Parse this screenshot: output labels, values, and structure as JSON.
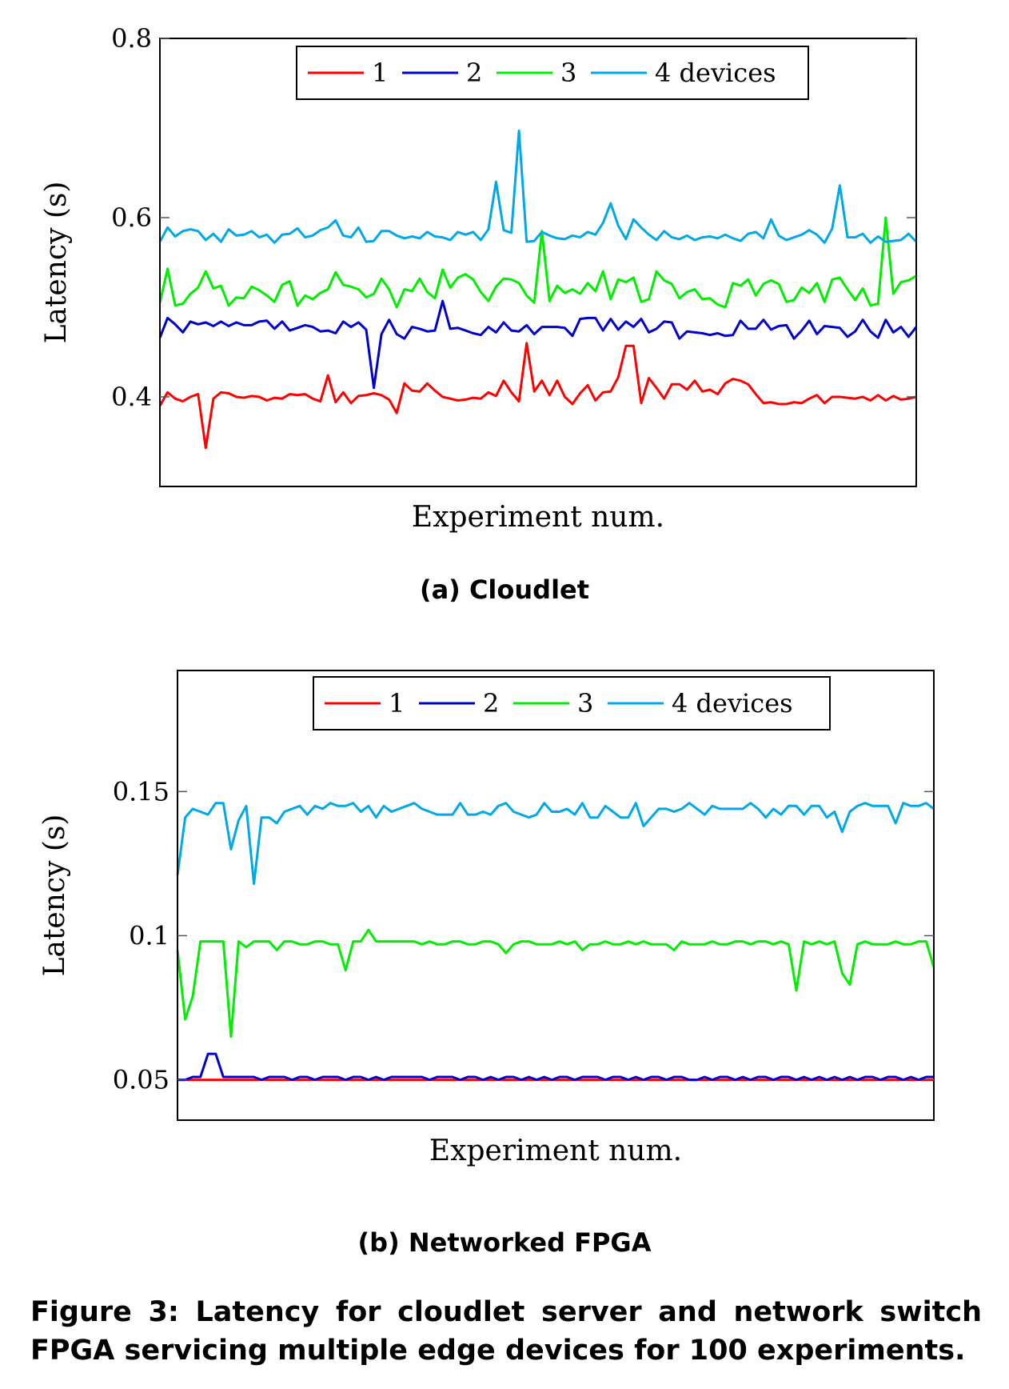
{
  "figure_caption": "Figure 3: Latency for cloudlet server and network switch FPGA servicing multiple edge devices for 100 experiments.",
  "colors": {
    "series_1": "#ff0000",
    "series_2": "#0000cc",
    "series_3": "#00ee00",
    "series_4": "#00a8e8"
  },
  "chart_data": [
    {
      "type": "line",
      "subcaption": "(a) Cloudlet",
      "xlabel": "Experiment num.",
      "ylabel": "Latency (s)",
      "ylim": [
        0.3,
        0.8
      ],
      "yticks": [
        0.4,
        0.6,
        0.8
      ],
      "ytick_labels": [
        "0.4",
        "0.6",
        "0.8"
      ],
      "x_tick_labels_shown": false,
      "grid": false,
      "legend_placement": "top-center",
      "x": [
        1,
        2,
        3,
        4,
        5,
        6,
        7,
        8,
        9,
        10,
        11,
        12,
        13,
        14,
        15,
        16,
        17,
        18,
        19,
        20,
        21,
        22,
        23,
        24,
        25,
        26,
        27,
        28,
        29,
        30,
        31,
        32,
        33,
        34,
        35,
        36,
        37,
        38,
        39,
        40,
        41,
        42,
        43,
        44,
        45,
        46,
        47,
        48,
        49,
        50,
        51,
        52,
        53,
        54,
        55,
        56,
        57,
        58,
        59,
        60,
        61,
        62,
        63,
        64,
        65,
        66,
        67,
        68,
        69,
        70,
        71,
        72,
        73,
        74,
        75,
        76,
        77,
        78,
        79,
        80,
        81,
        82,
        83,
        84,
        85,
        86,
        87,
        88,
        89,
        90,
        91,
        92,
        93,
        94,
        95,
        96,
        97,
        98,
        99,
        100
      ],
      "series": [
        {
          "name": "1",
          "values": [
            0.39,
            0.405,
            0.398,
            0.395,
            0.4,
            0.403,
            0.343,
            0.398,
            0.405,
            0.404,
            0.4,
            0.399,
            0.401,
            0.4,
            0.396,
            0.399,
            0.398,
            0.403,
            0.402,
            0.403,
            0.398,
            0.395,
            0.424,
            0.394,
            0.405,
            0.393,
            0.401,
            0.402,
            0.404,
            0.402,
            0.397,
            0.382,
            0.415,
            0.407,
            0.406,
            0.415,
            0.407,
            0.4,
            0.398,
            0.396,
            0.397,
            0.399,
            0.398,
            0.405,
            0.401,
            0.418,
            0.405,
            0.395,
            0.46,
            0.406,
            0.418,
            0.402,
            0.418,
            0.4,
            0.392,
            0.404,
            0.413,
            0.396,
            0.405,
            0.406,
            0.422,
            0.457,
            0.457,
            0.393,
            0.421,
            0.41,
            0.398,
            0.414,
            0.414,
            0.408,
            0.418,
            0.406,
            0.408,
            0.403,
            0.415,
            0.42,
            0.418,
            0.414,
            0.403,
            0.393,
            0.394,
            0.392,
            0.392,
            0.394,
            0.393,
            0.398,
            0.402,
            0.393,
            0.4,
            0.4,
            0.399,
            0.398,
            0.4,
            0.396,
            0.402,
            0.396,
            0.401,
            0.397,
            0.398,
            0.4
          ]
        },
        {
          "name": "2",
          "values": [
            0.466,
            0.488,
            0.481,
            0.472,
            0.484,
            0.481,
            0.483,
            0.479,
            0.484,
            0.479,
            0.483,
            0.48,
            0.48,
            0.484,
            0.485,
            0.476,
            0.484,
            0.474,
            0.477,
            0.48,
            0.478,
            0.473,
            0.474,
            0.471,
            0.484,
            0.478,
            0.483,
            0.475,
            0.41,
            0.47,
            0.486,
            0.47,
            0.465,
            0.478,
            0.476,
            0.473,
            0.474,
            0.507,
            0.476,
            0.477,
            0.474,
            0.471,
            0.469,
            0.478,
            0.472,
            0.483,
            0.474,
            0.473,
            0.48,
            0.47,
            0.478,
            0.478,
            0.478,
            0.477,
            0.468,
            0.487,
            0.488,
            0.488,
            0.474,
            0.487,
            0.475,
            0.484,
            0.478,
            0.487,
            0.472,
            0.476,
            0.484,
            0.483,
            0.465,
            0.473,
            0.472,
            0.471,
            0.469,
            0.471,
            0.468,
            0.469,
            0.485,
            0.476,
            0.476,
            0.486,
            0.475,
            0.479,
            0.48,
            0.465,
            0.474,
            0.485,
            0.47,
            0.479,
            0.478,
            0.477,
            0.467,
            0.473,
            0.486,
            0.473,
            0.466,
            0.486,
            0.472,
            0.478,
            0.467,
            0.478
          ]
        },
        {
          "name": "3",
          "values": [
            0.505,
            0.543,
            0.502,
            0.504,
            0.515,
            0.522,
            0.54,
            0.521,
            0.524,
            0.502,
            0.511,
            0.51,
            0.523,
            0.519,
            0.513,
            0.506,
            0.525,
            0.529,
            0.502,
            0.513,
            0.509,
            0.516,
            0.52,
            0.539,
            0.525,
            0.523,
            0.52,
            0.511,
            0.515,
            0.532,
            0.52,
            0.5,
            0.52,
            0.518,
            0.532,
            0.517,
            0.51,
            0.542,
            0.522,
            0.533,
            0.537,
            0.531,
            0.517,
            0.507,
            0.523,
            0.532,
            0.531,
            0.527,
            0.513,
            0.505,
            0.585,
            0.507,
            0.524,
            0.516,
            0.52,
            0.515,
            0.527,
            0.518,
            0.54,
            0.509,
            0.531,
            0.528,
            0.533,
            0.506,
            0.509,
            0.54,
            0.53,
            0.526,
            0.51,
            0.517,
            0.52,
            0.509,
            0.51,
            0.503,
            0.5,
            0.527,
            0.524,
            0.531,
            0.513,
            0.526,
            0.53,
            0.526,
            0.506,
            0.508,
            0.522,
            0.516,
            0.527,
            0.506,
            0.531,
            0.533,
            0.52,
            0.508,
            0.521,
            0.502,
            0.504,
            0.6,
            0.515,
            0.528,
            0.53,
            0.535
          ]
        },
        {
          "name": "4 devices",
          "values": [
            0.573,
            0.589,
            0.579,
            0.585,
            0.587,
            0.585,
            0.575,
            0.582,
            0.573,
            0.587,
            0.58,
            0.581,
            0.585,
            0.578,
            0.581,
            0.572,
            0.581,
            0.582,
            0.588,
            0.578,
            0.58,
            0.586,
            0.589,
            0.597,
            0.58,
            0.578,
            0.589,
            0.573,
            0.574,
            0.585,
            0.585,
            0.58,
            0.577,
            0.579,
            0.577,
            0.584,
            0.579,
            0.578,
            0.575,
            0.584,
            0.581,
            0.584,
            0.575,
            0.587,
            0.64,
            0.586,
            0.583,
            0.697,
            0.573,
            0.574,
            0.584,
            0.58,
            0.577,
            0.576,
            0.58,
            0.578,
            0.584,
            0.581,
            0.594,
            0.616,
            0.591,
            0.576,
            0.598,
            0.589,
            0.581,
            0.575,
            0.585,
            0.578,
            0.576,
            0.58,
            0.575,
            0.578,
            0.579,
            0.577,
            0.581,
            0.577,
            0.574,
            0.582,
            0.584,
            0.577,
            0.598,
            0.58,
            0.575,
            0.578,
            0.581,
            0.586,
            0.581,
            0.572,
            0.588,
            0.636,
            0.578,
            0.578,
            0.582,
            0.572,
            0.579,
            0.573,
            0.574,
            0.575,
            0.582,
            0.573
          ]
        }
      ]
    },
    {
      "type": "line",
      "subcaption": "(b) Networked FPGA",
      "xlabel": "Experiment num.",
      "ylabel": "Latency (s)",
      "ylim": [
        0.036,
        0.192
      ],
      "yticks": [
        0.05,
        0.1,
        0.15
      ],
      "ytick_labels": [
        "0.05",
        "0.1",
        "0.15"
      ],
      "x_tick_labels_shown": false,
      "grid": false,
      "legend_placement": "top-center",
      "x": [
        1,
        2,
        3,
        4,
        5,
        6,
        7,
        8,
        9,
        10,
        11,
        12,
        13,
        14,
        15,
        16,
        17,
        18,
        19,
        20,
        21,
        22,
        23,
        24,
        25,
        26,
        27,
        28,
        29,
        30,
        31,
        32,
        33,
        34,
        35,
        36,
        37,
        38,
        39,
        40,
        41,
        42,
        43,
        44,
        45,
        46,
        47,
        48,
        49,
        50,
        51,
        52,
        53,
        54,
        55,
        56,
        57,
        58,
        59,
        60,
        61,
        62,
        63,
        64,
        65,
        66,
        67,
        68,
        69,
        70,
        71,
        72,
        73,
        74,
        75,
        76,
        77,
        78,
        79,
        80,
        81,
        82,
        83,
        84,
        85,
        86,
        87,
        88,
        89,
        90,
        91,
        92,
        93,
        94,
        95,
        96,
        97,
        98,
        99,
        100
      ],
      "series": [
        {
          "name": "1",
          "values": [
            0.05,
            0.05,
            0.05,
            0.05,
            0.05,
            0.05,
            0.05,
            0.05,
            0.05,
            0.05,
            0.05,
            0.05,
            0.05,
            0.05,
            0.05,
            0.05,
            0.05,
            0.05,
            0.05,
            0.05,
            0.05,
            0.05,
            0.05,
            0.05,
            0.05,
            0.05,
            0.05,
            0.05,
            0.05,
            0.05,
            0.05,
            0.05,
            0.05,
            0.05,
            0.05,
            0.05,
            0.05,
            0.05,
            0.05,
            0.05,
            0.05,
            0.05,
            0.05,
            0.05,
            0.05,
            0.05,
            0.05,
            0.05,
            0.05,
            0.05,
            0.05,
            0.05,
            0.05,
            0.05,
            0.05,
            0.05,
            0.05,
            0.05,
            0.05,
            0.05,
            0.05,
            0.05,
            0.05,
            0.05,
            0.05,
            0.05,
            0.05,
            0.05,
            0.05,
            0.05,
            0.05,
            0.05,
            0.05,
            0.05,
            0.05,
            0.05,
            0.05,
            0.05,
            0.05,
            0.05,
            0.05,
            0.05,
            0.05,
            0.05,
            0.05,
            0.05,
            0.05,
            0.05,
            0.05,
            0.05,
            0.05,
            0.05,
            0.05,
            0.05,
            0.05,
            0.05,
            0.05,
            0.05,
            0.05,
            0.05
          ]
        },
        {
          "name": "2",
          "values": [
            0.05,
            0.05,
            0.051,
            0.051,
            0.059,
            0.059,
            0.051,
            0.051,
            0.051,
            0.051,
            0.051,
            0.05,
            0.051,
            0.051,
            0.051,
            0.05,
            0.051,
            0.051,
            0.05,
            0.051,
            0.051,
            0.051,
            0.05,
            0.051,
            0.051,
            0.05,
            0.051,
            0.05,
            0.051,
            0.051,
            0.051,
            0.051,
            0.051,
            0.05,
            0.051,
            0.051,
            0.051,
            0.05,
            0.051,
            0.051,
            0.05,
            0.051,
            0.05,
            0.051,
            0.051,
            0.05,
            0.051,
            0.05,
            0.051,
            0.05,
            0.051,
            0.051,
            0.05,
            0.051,
            0.051,
            0.051,
            0.05,
            0.051,
            0.051,
            0.05,
            0.051,
            0.05,
            0.051,
            0.051,
            0.05,
            0.051,
            0.051,
            0.05,
            0.05,
            0.051,
            0.05,
            0.051,
            0.051,
            0.05,
            0.051,
            0.05,
            0.051,
            0.051,
            0.05,
            0.051,
            0.051,
            0.05,
            0.051,
            0.05,
            0.051,
            0.05,
            0.051,
            0.05,
            0.051,
            0.05,
            0.051,
            0.051,
            0.05,
            0.051,
            0.051,
            0.05,
            0.051,
            0.05,
            0.051,
            0.051
          ]
        },
        {
          "name": "3",
          "values": [
            0.095,
            0.071,
            0.079,
            0.098,
            0.098,
            0.098,
            0.098,
            0.065,
            0.098,
            0.096,
            0.098,
            0.098,
            0.098,
            0.095,
            0.098,
            0.098,
            0.097,
            0.097,
            0.098,
            0.098,
            0.097,
            0.097,
            0.088,
            0.098,
            0.098,
            0.102,
            0.098,
            0.098,
            0.098,
            0.098,
            0.098,
            0.098,
            0.097,
            0.098,
            0.097,
            0.097,
            0.098,
            0.098,
            0.097,
            0.097,
            0.098,
            0.098,
            0.097,
            0.094,
            0.097,
            0.098,
            0.098,
            0.097,
            0.097,
            0.097,
            0.098,
            0.097,
            0.098,
            0.095,
            0.097,
            0.097,
            0.098,
            0.097,
            0.097,
            0.098,
            0.097,
            0.098,
            0.097,
            0.097,
            0.097,
            0.095,
            0.098,
            0.097,
            0.097,
            0.097,
            0.098,
            0.097,
            0.097,
            0.098,
            0.098,
            0.097,
            0.098,
            0.098,
            0.097,
            0.098,
            0.097,
            0.081,
            0.098,
            0.097,
            0.098,
            0.097,
            0.098,
            0.087,
            0.083,
            0.097,
            0.098,
            0.097,
            0.097,
            0.097,
            0.098,
            0.097,
            0.097,
            0.098,
            0.098,
            0.089
          ]
        },
        {
          "name": "4 devices",
          "values": [
            0.121,
            0.141,
            0.144,
            0.143,
            0.142,
            0.146,
            0.146,
            0.13,
            0.14,
            0.145,
            0.118,
            0.141,
            0.141,
            0.139,
            0.143,
            0.144,
            0.145,
            0.142,
            0.145,
            0.144,
            0.146,
            0.145,
            0.145,
            0.146,
            0.143,
            0.145,
            0.141,
            0.145,
            0.143,
            0.144,
            0.145,
            0.146,
            0.144,
            0.143,
            0.142,
            0.142,
            0.142,
            0.146,
            0.142,
            0.142,
            0.143,
            0.142,
            0.145,
            0.146,
            0.143,
            0.142,
            0.141,
            0.142,
            0.146,
            0.143,
            0.143,
            0.144,
            0.142,
            0.146,
            0.141,
            0.141,
            0.145,
            0.143,
            0.141,
            0.141,
            0.146,
            0.138,
            0.141,
            0.144,
            0.144,
            0.143,
            0.144,
            0.146,
            0.144,
            0.142,
            0.145,
            0.144,
            0.144,
            0.144,
            0.144,
            0.146,
            0.144,
            0.141,
            0.144,
            0.142,
            0.145,
            0.145,
            0.142,
            0.145,
            0.145,
            0.141,
            0.143,
            0.136,
            0.143,
            0.145,
            0.146,
            0.145,
            0.145,
            0.145,
            0.139,
            0.146,
            0.145,
            0.145,
            0.146,
            0.144
          ]
        }
      ]
    }
  ]
}
